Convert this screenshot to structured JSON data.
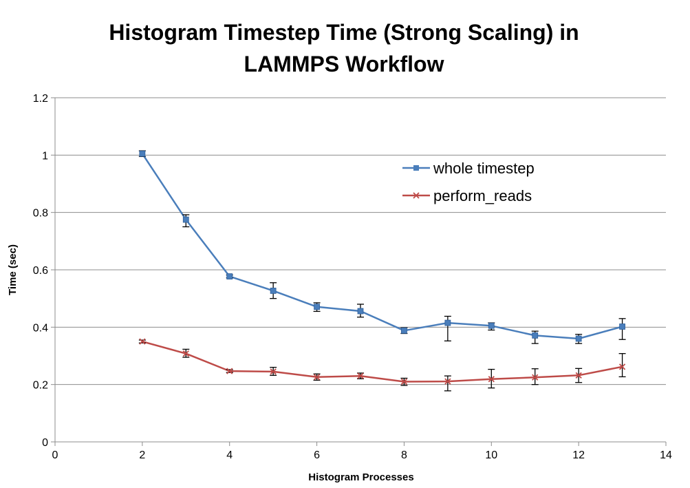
{
  "chart_data": {
    "type": "line",
    "title_lines": [
      "Histogram Timestep Time (Strong Scaling) in",
      "LAMMPS Workflow"
    ],
    "xlabel": "Histogram Processes",
    "ylabel": "Time (sec)",
    "xlim": [
      0,
      14
    ],
    "ylim": [
      0,
      1.2
    ],
    "x_ticks": [
      0,
      2,
      4,
      6,
      8,
      10,
      12,
      14
    ],
    "y_ticks": [
      0,
      0.2,
      0.4,
      0.6,
      0.8,
      1,
      1.2
    ],
    "grid": "horizontal",
    "legend_position": "right-upper",
    "series": [
      {
        "name": "whole timestep",
        "color": "#4a7ebb",
        "marker": "square",
        "x": [
          2,
          3,
          4,
          5,
          6,
          7,
          8,
          9,
          10,
          11,
          12,
          13
        ],
        "y": [
          1.005,
          0.775,
          0.577,
          0.527,
          0.471,
          0.456,
          0.388,
          0.415,
          0.405,
          0.371,
          0.36,
          0.402
        ],
        "err_low": [
          0.995,
          0.75,
          0.572,
          0.5,
          0.455,
          0.435,
          0.378,
          0.352,
          0.39,
          0.343,
          0.343,
          0.357
        ],
        "err_high": [
          1.015,
          0.792,
          0.582,
          0.555,
          0.485,
          0.48,
          0.398,
          0.438,
          0.415,
          0.386,
          0.375,
          0.43
        ]
      },
      {
        "name": "perform_reads",
        "color": "#be4b48",
        "marker": "x",
        "x": [
          2,
          3,
          4,
          5,
          6,
          7,
          8,
          9,
          10,
          11,
          12,
          13
        ],
        "y": [
          0.35,
          0.308,
          0.247,
          0.245,
          0.226,
          0.23,
          0.21,
          0.211,
          0.219,
          0.225,
          0.232,
          0.262
        ],
        "err_low": [
          0.345,
          0.295,
          0.242,
          0.232,
          0.215,
          0.22,
          0.197,
          0.178,
          0.188,
          0.2,
          0.207,
          0.227
        ],
        "err_high": [
          0.355,
          0.323,
          0.252,
          0.26,
          0.237,
          0.24,
          0.222,
          0.23,
          0.253,
          0.255,
          0.256,
          0.308
        ]
      }
    ]
  }
}
